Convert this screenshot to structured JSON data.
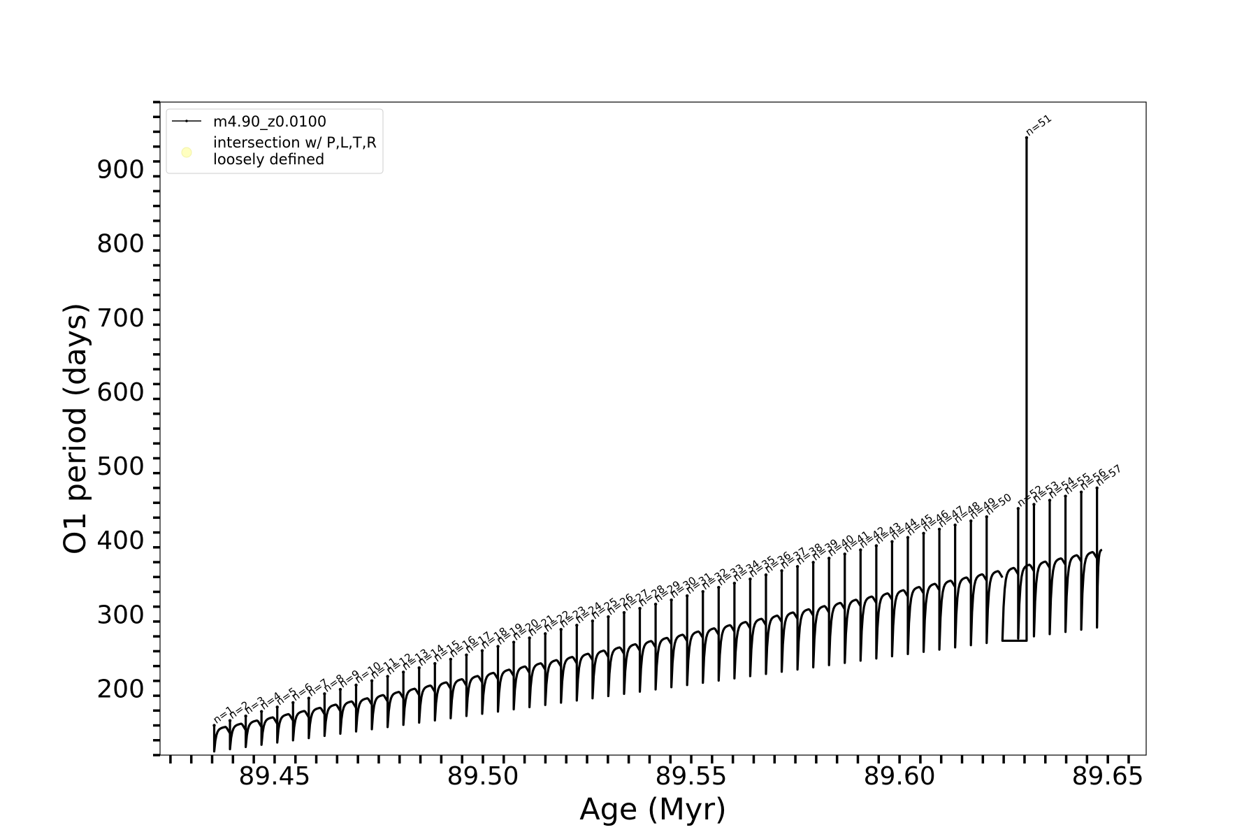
{
  "chart_data": {
    "type": "line",
    "title": "",
    "xlabel": "Age (Myr)",
    "ylabel": "O1 period (days)",
    "xlim": [
      89.4225,
      89.6592
    ],
    "ylim": [
      110,
      990
    ],
    "xticks": [
      89.45,
      89.5,
      89.55,
      89.6,
      89.65
    ],
    "xtick_labels": [
      "89.45",
      "89.50",
      "89.55",
      "89.60",
      "89.65"
    ],
    "yticks": [
      200,
      300,
      400,
      500,
      600,
      700,
      800,
      900
    ],
    "ytick_labels": [
      "200",
      "300",
      "400",
      "500",
      "600",
      "700",
      "800",
      "900"
    ],
    "x_minor_step": 0.005,
    "y_minor_step": 20,
    "grid": false,
    "legend_position": "top-left",
    "legend": {
      "series_label": "m4.90_z0.0100",
      "marker_label_line1": "intersection w/ P,L,T,R",
      "marker_label_line2": "loosely defined"
    },
    "series": [
      {
        "name": "m4.90_z0.0100",
        "color": "#000000",
        "marker_color": "#ffffc0",
        "pulses": {
          "count": 57,
          "age_start": 89.4355,
          "age_end": 89.6474,
          "period_baseline_start": 145,
          "period_baseline_end": 385,
          "period_min_start": 115,
          "period_min_end": 282,
          "period_spike_start": 150,
          "period_spike_end": 470,
          "special_spike": {
            "n": 51,
            "age": 89.6305,
            "period": 942
          }
        }
      }
    ],
    "annotations": [
      "n=1",
      "n=2",
      "n=3",
      "n=4",
      "n=5",
      "n=6",
      "n=7",
      "n=8",
      "n=9",
      "n=10",
      "n=11",
      "n=12",
      "n=13",
      "n=14",
      "n=15",
      "n=16",
      "n=17",
      "n=18",
      "n=19",
      "n=20",
      "n=21",
      "n=22",
      "n=23",
      "n=24",
      "n=25",
      "n=26",
      "n=27",
      "n=28",
      "n=29",
      "n=30",
      "n=31",
      "n=32",
      "n=33",
      "n=34",
      "n=35",
      "n=36",
      "n=37",
      "n=38",
      "n=39",
      "n=40",
      "n=41",
      "n=42",
      "n=43",
      "n=44",
      "n=45",
      "n=46",
      "n=47",
      "n=48",
      "n=49",
      "n=50",
      "n=51",
      "n=52",
      "n=53",
      "n=54",
      "n=55",
      "n=56",
      "n=57"
    ]
  }
}
